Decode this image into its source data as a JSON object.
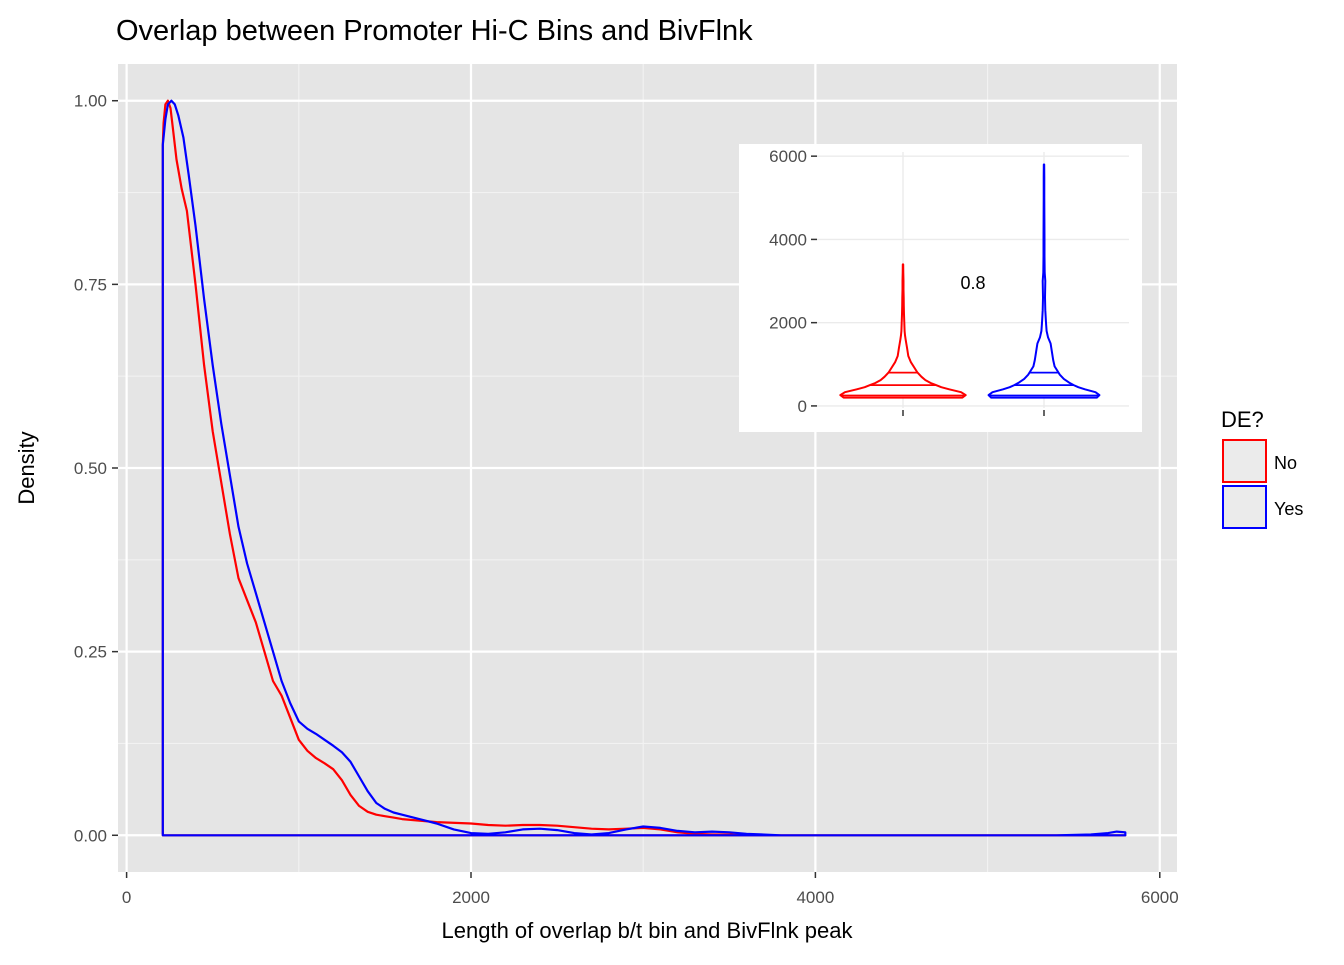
{
  "chart_data": {
    "type": "density",
    "title": "Overlap between Promoter Hi-C Bins and BivFlnk",
    "xlabel": "Length of overlap b/t bin and BivFlnk peak",
    "ylabel": "Density",
    "xlim": [
      -50,
      6100
    ],
    "ylim": [
      -0.05,
      1.05
    ],
    "x_ticks": [
      0,
      2000,
      4000,
      6000
    ],
    "y_ticks": [
      0,
      0.25,
      0.5,
      0.75,
      1.0
    ],
    "x_tick_labels": [
      "0",
      "2000",
      "4000",
      "6000"
    ],
    "y_tick_labels": [
      "0.00",
      "0.25",
      "0.50",
      "0.75",
      "1.00"
    ],
    "grid": true,
    "legend": {
      "title": "DE?",
      "position": "right",
      "entries": [
        {
          "label": "No",
          "color": "#ff0000"
        },
        {
          "label": "Yes",
          "color": "#0000ff"
        }
      ]
    },
    "series": [
      {
        "name": "No",
        "color": "#ff0000",
        "x": [
          210,
          215,
          225,
          240,
          255,
          270,
          290,
          320,
          350,
          400,
          450,
          500,
          550,
          600,
          650,
          700,
          750,
          800,
          850,
          900,
          950,
          1000,
          1050,
          1100,
          1150,
          1200,
          1250,
          1300,
          1350,
          1400,
          1450,
          1500,
          1550,
          1600,
          1700,
          1800,
          2000,
          2100,
          2200,
          2300,
          2400,
          2500,
          2600,
          2700,
          2800,
          2900,
          3000,
          3100,
          3200,
          3300,
          3400,
          3500,
          3600,
          3700,
          3800,
          4000,
          4500,
          5000,
          5500,
          5700,
          5800
        ],
        "y": [
          0.94,
          0.97,
          0.995,
          1.0,
          0.99,
          0.96,
          0.92,
          0.88,
          0.85,
          0.75,
          0.64,
          0.55,
          0.48,
          0.41,
          0.35,
          0.32,
          0.29,
          0.25,
          0.21,
          0.19,
          0.16,
          0.13,
          0.115,
          0.105,
          0.098,
          0.09,
          0.075,
          0.055,
          0.04,
          0.032,
          0.028,
          0.026,
          0.024,
          0.022,
          0.02,
          0.018,
          0.016,
          0.014,
          0.013,
          0.014,
          0.014,
          0.013,
          0.011,
          0.009,
          0.008,
          0.009,
          0.01,
          0.008,
          0.004,
          0.002,
          0.001,
          0.001,
          0.0,
          0.0,
          0.0,
          0.0,
          0.0,
          0.0,
          0.0,
          0.0,
          0.0
        ]
      },
      {
        "name": "Yes",
        "color": "#0000ff",
        "x": [
          210,
          225,
          240,
          260,
          280,
          300,
          330,
          360,
          400,
          450,
          500,
          550,
          600,
          650,
          700,
          750,
          800,
          850,
          900,
          950,
          1000,
          1050,
          1100,
          1150,
          1200,
          1250,
          1300,
          1350,
          1400,
          1450,
          1500,
          1550,
          1600,
          1700,
          1800,
          1900,
          2000,
          2100,
          2200,
          2300,
          2400,
          2500,
          2600,
          2700,
          2800,
          2900,
          3000,
          3100,
          3200,
          3300,
          3400,
          3500,
          3600,
          3800,
          4000,
          4500,
          5000,
          5400,
          5600,
          5700,
          5750,
          5800
        ],
        "y": [
          0.94,
          0.975,
          0.995,
          1.0,
          0.995,
          0.98,
          0.95,
          0.9,
          0.83,
          0.73,
          0.64,
          0.56,
          0.49,
          0.42,
          0.37,
          0.33,
          0.29,
          0.25,
          0.21,
          0.18,
          0.155,
          0.145,
          0.138,
          0.13,
          0.122,
          0.113,
          0.1,
          0.08,
          0.06,
          0.044,
          0.036,
          0.031,
          0.028,
          0.022,
          0.016,
          0.008,
          0.003,
          0.002,
          0.004,
          0.008,
          0.009,
          0.007,
          0.003,
          0.001,
          0.003,
          0.008,
          0.012,
          0.01,
          0.006,
          0.004,
          0.005,
          0.004,
          0.002,
          0.0,
          0.0,
          0.0,
          0.0,
          0.0,
          0.001,
          0.003,
          0.005,
          0.004
        ]
      }
    ],
    "inset": {
      "type": "violin",
      "ylim": [
        -50,
        6100
      ],
      "y_ticks": [
        0,
        2000,
        4000,
        6000
      ],
      "y_tick_labels": [
        "0",
        "2000",
        "4000",
        "6000"
      ],
      "annotation": "0.8",
      "annotation_y": 2950,
      "quantile_lines": [
        250,
        500,
        800
      ],
      "groups": [
        {
          "name": "No",
          "color": "#ff0000",
          "profile_y": [
            200,
            260,
            330,
            400,
            450,
            500,
            550,
            620,
            700,
            800,
            900,
            1050,
            1200,
            1400,
            1500,
            1600,
            1700,
            1800,
            2000,
            2200,
            2400,
            2600,
            2800,
            3000,
            3200,
            3400
          ],
          "profile_width": [
            0.9,
            0.95,
            0.88,
            0.7,
            0.58,
            0.5,
            0.42,
            0.34,
            0.28,
            0.22,
            0.18,
            0.12,
            0.08,
            0.06,
            0.05,
            0.04,
            0.03,
            0.025,
            0.02,
            0.015,
            0.012,
            0.01,
            0.008,
            0.007,
            0.005,
            0.003
          ]
        },
        {
          "name": "Yes",
          "color": "#0000ff",
          "profile_y": [
            200,
            260,
            330,
            400,
            450,
            500,
            560,
            650,
            750,
            850,
            950,
            1100,
            1300,
            1500,
            1650,
            1800,
            2000,
            2300,
            2600,
            3000,
            3200,
            3600,
            4000,
            4500,
            5000,
            5500,
            5800
          ],
          "profile_width": [
            0.8,
            0.84,
            0.78,
            0.62,
            0.52,
            0.45,
            0.38,
            0.3,
            0.24,
            0.2,
            0.16,
            0.14,
            0.12,
            0.1,
            0.06,
            0.04,
            0.03,
            0.02,
            0.015,
            0.02,
            0.01,
            0.008,
            0.007,
            0.006,
            0.005,
            0.004,
            0.003
          ]
        }
      ]
    }
  }
}
